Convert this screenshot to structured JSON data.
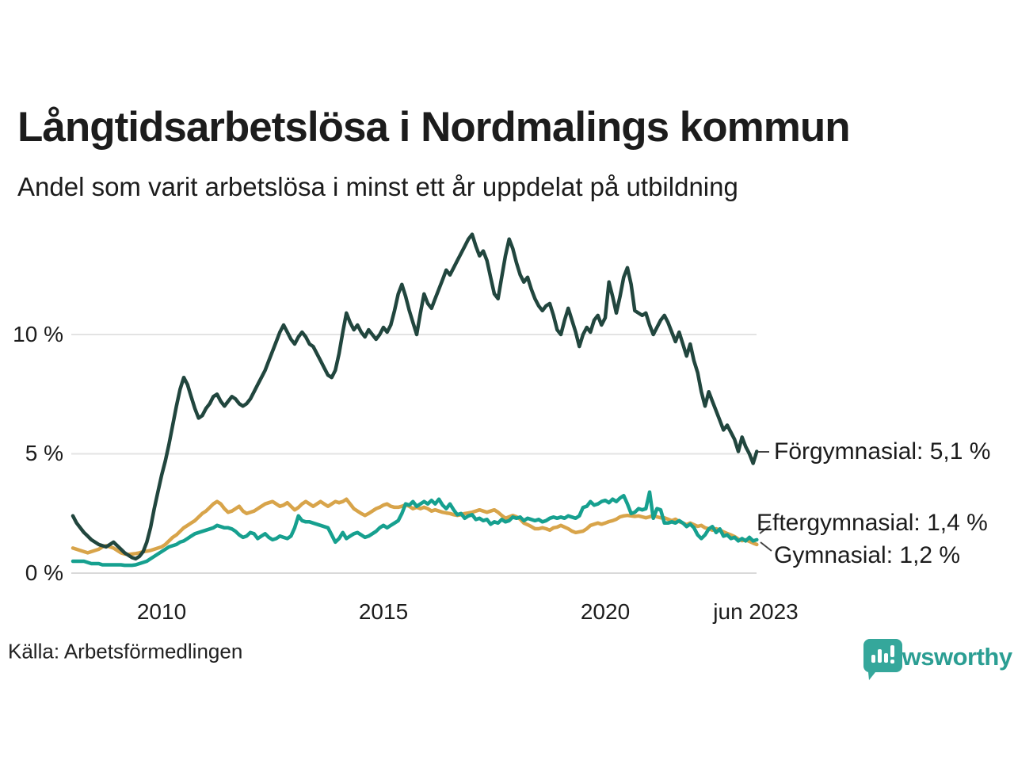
{
  "title": "Långtidsarbetslösa i Nordmalings kommun",
  "subtitle": "Andel som varit arbetslösa i minst ett år uppdelat på utbildning",
  "source": "Källa: Arbetsförmedlingen",
  "brand": {
    "name": "Newsworthy",
    "color": "#2b9e93",
    "logo_color": "#35a79b",
    "icon": "bar-chart-speech-bubble-icon"
  },
  "colors": {
    "background": "#ffffff",
    "text": "#1c1c1c",
    "grid": "#e3e3e3",
    "grid_zero": "#d9d9d9",
    "connector": "#444444"
  },
  "chart_data": {
    "type": "line",
    "x_start": "2008-01",
    "x_end": "2023-06",
    "x_interval": "monthly",
    "x_tick_labels": [
      "2010",
      "2015",
      "2020",
      "jun 2023"
    ],
    "y_tick_labels": [
      "0 %",
      "5 %",
      "10 %"
    ],
    "y_tick_values": [
      0,
      5,
      10
    ],
    "ylim": [
      0,
      14.6
    ],
    "grid": "horizontal",
    "legend_position": "end-of-line-labels",
    "series": [
      {
        "name": "Förgymnasial",
        "color": "#21463e",
        "end_value": "5,1 %",
        "end_label": "Förgymnasial: 5,1 %",
        "values": [
          2.4,
          2.1,
          1.9,
          1.7,
          1.55,
          1.4,
          1.3,
          1.2,
          1.15,
          1.1,
          1.2,
          1.3,
          1.15,
          1.0,
          0.85,
          0.75,
          0.65,
          0.6,
          0.7,
          0.9,
          1.3,
          1.9,
          2.7,
          3.4,
          4.1,
          4.7,
          5.4,
          6.2,
          7.0,
          7.7,
          8.2,
          7.9,
          7.4,
          6.9,
          6.5,
          6.6,
          6.9,
          7.1,
          7.4,
          7.5,
          7.2,
          7.0,
          7.2,
          7.4,
          7.3,
          7.1,
          7.0,
          7.1,
          7.3,
          7.6,
          7.9,
          8.2,
          8.5,
          8.9,
          9.3,
          9.7,
          10.1,
          10.4,
          10.1,
          9.8,
          9.6,
          9.9,
          10.1,
          9.9,
          9.6,
          9.5,
          9.2,
          8.9,
          8.6,
          8.3,
          8.2,
          8.5,
          9.2,
          10.1,
          10.9,
          10.5,
          10.2,
          10.4,
          10.1,
          9.9,
          10.2,
          10.0,
          9.8,
          10.0,
          10.3,
          10.1,
          10.4,
          11.0,
          11.7,
          12.1,
          11.6,
          11.0,
          10.5,
          10.0,
          10.9,
          11.7,
          11.3,
          11.1,
          11.5,
          11.9,
          12.3,
          12.7,
          12.5,
          12.8,
          13.1,
          13.4,
          13.7,
          14.0,
          14.2,
          13.7,
          13.3,
          13.5,
          13.1,
          12.4,
          11.7,
          11.5,
          12.4,
          13.3,
          14.0,
          13.6,
          13.0,
          12.5,
          12.2,
          12.4,
          11.9,
          11.5,
          11.2,
          11.0,
          11.2,
          11.3,
          10.8,
          10.2,
          10.0,
          10.6,
          11.1,
          10.6,
          10.1,
          9.5,
          10.0,
          10.3,
          10.1,
          10.6,
          10.8,
          10.4,
          10.7,
          12.2,
          11.6,
          10.9,
          11.6,
          12.4,
          12.8,
          12.1,
          11.0,
          10.9,
          10.8,
          10.9,
          10.4,
          10.0,
          10.3,
          10.6,
          10.8,
          10.5,
          10.1,
          9.7,
          10.1,
          9.6,
          9.1,
          9.6,
          8.9,
          8.4,
          7.6,
          7.0,
          7.6,
          7.2,
          6.8,
          6.4,
          6.0,
          6.2,
          5.9,
          5.6,
          5.1,
          5.7,
          5.3,
          5.0,
          4.6,
          5.1
        ]
      },
      {
        "name": "Eftergymnasial",
        "color": "#16a08f",
        "end_value": "1,4 %",
        "end_label": "Eftergymnasial: 1,4 %",
        "values": [
          0.5,
          0.5,
          0.5,
          0.5,
          0.45,
          0.4,
          0.4,
          0.4,
          0.35,
          0.35,
          0.35,
          0.35,
          0.35,
          0.35,
          0.33,
          0.33,
          0.33,
          0.35,
          0.4,
          0.45,
          0.5,
          0.6,
          0.7,
          0.8,
          0.9,
          1.0,
          1.1,
          1.15,
          1.2,
          1.3,
          1.35,
          1.45,
          1.55,
          1.65,
          1.7,
          1.75,
          1.8,
          1.85,
          1.9,
          2.0,
          1.95,
          1.9,
          1.9,
          1.85,
          1.75,
          1.6,
          1.5,
          1.55,
          1.7,
          1.65,
          1.45,
          1.55,
          1.65,
          1.5,
          1.4,
          1.45,
          1.55,
          1.5,
          1.45,
          1.55,
          1.9,
          2.4,
          2.2,
          2.15,
          2.15,
          2.1,
          2.05,
          2.0,
          1.95,
          1.9,
          1.6,
          1.3,
          1.45,
          1.7,
          1.45,
          1.55,
          1.65,
          1.7,
          1.6,
          1.5,
          1.55,
          1.65,
          1.75,
          1.9,
          2.0,
          1.9,
          2.0,
          2.1,
          2.2,
          2.5,
          2.9,
          2.85,
          3.0,
          2.8,
          2.9,
          3.0,
          2.9,
          3.05,
          2.9,
          3.1,
          2.85,
          2.7,
          2.9,
          2.65,
          2.45,
          2.5,
          2.3,
          2.4,
          2.45,
          2.25,
          2.3,
          2.2,
          2.25,
          2.05,
          2.15,
          2.1,
          2.25,
          2.15,
          2.2,
          2.35,
          2.3,
          2.35,
          2.2,
          2.3,
          2.25,
          2.2,
          2.25,
          2.15,
          2.2,
          2.3,
          2.35,
          2.3,
          2.35,
          2.3,
          2.4,
          2.35,
          2.3,
          2.4,
          2.75,
          2.8,
          3.0,
          2.85,
          2.9,
          3.0,
          3.05,
          2.95,
          3.1,
          3.0,
          3.15,
          3.25,
          2.9,
          2.5,
          2.55,
          2.7,
          2.65,
          2.7,
          3.4,
          2.3,
          2.7,
          2.65,
          2.1,
          2.1,
          2.15,
          2.1,
          2.2,
          2.1,
          1.95,
          2.05,
          1.9,
          1.6,
          1.45,
          1.6,
          1.85,
          1.95,
          1.7,
          1.85,
          1.55,
          1.6,
          1.45,
          1.5,
          1.35,
          1.45,
          1.35,
          1.5,
          1.35,
          1.4
        ]
      },
      {
        "name": "Gymnasial",
        "color": "#d8a44a",
        "end_value": "1,2 %",
        "end_label": "Gymnasial: 1,2 %",
        "values": [
          1.05,
          1.0,
          0.95,
          0.9,
          0.85,
          0.9,
          0.95,
          1.0,
          1.1,
          1.15,
          1.1,
          1.05,
          0.95,
          0.85,
          0.8,
          0.78,
          0.8,
          0.82,
          0.85,
          0.9,
          0.92,
          0.95,
          1.0,
          1.05,
          1.1,
          1.2,
          1.35,
          1.5,
          1.6,
          1.75,
          1.9,
          2.0,
          2.1,
          2.2,
          2.35,
          2.5,
          2.6,
          2.75,
          2.9,
          3.0,
          2.9,
          2.7,
          2.55,
          2.6,
          2.7,
          2.8,
          2.6,
          2.5,
          2.55,
          2.6,
          2.7,
          2.8,
          2.9,
          2.95,
          3.0,
          2.9,
          2.8,
          2.85,
          2.95,
          2.8,
          2.65,
          2.75,
          2.9,
          3.0,
          2.9,
          2.8,
          2.9,
          3.0,
          2.9,
          2.8,
          2.9,
          3.0,
          2.95,
          3.0,
          3.1,
          2.9,
          2.7,
          2.6,
          2.5,
          2.42,
          2.5,
          2.6,
          2.7,
          2.76,
          2.85,
          2.9,
          2.8,
          2.76,
          2.76,
          2.8,
          2.86,
          2.8,
          2.7,
          2.76,
          2.7,
          2.76,
          2.7,
          2.6,
          2.65,
          2.6,
          2.55,
          2.52,
          2.5,
          2.45,
          2.42,
          2.45,
          2.5,
          2.52,
          2.55,
          2.6,
          2.65,
          2.6,
          2.55,
          2.6,
          2.65,
          2.55,
          2.42,
          2.3,
          2.36,
          2.42,
          2.36,
          2.26,
          2.1,
          2.03,
          1.95,
          1.86,
          1.86,
          1.9,
          1.86,
          1.8,
          1.9,
          1.93,
          2.0,
          1.93,
          1.86,
          1.76,
          1.7,
          1.73,
          1.76,
          1.86,
          2.0,
          2.05,
          2.1,
          2.05,
          2.1,
          2.16,
          2.2,
          2.26,
          2.36,
          2.4,
          2.42,
          2.4,
          2.38,
          2.4,
          2.36,
          2.32,
          2.36,
          2.42,
          2.36,
          2.32,
          2.32,
          2.26,
          2.2,
          2.26,
          2.16,
          2.1,
          2.03,
          2.1,
          2.03,
          1.96,
          2.0,
          1.9,
          1.86,
          1.8,
          1.86,
          1.8,
          1.73,
          1.66,
          1.6,
          1.53,
          1.43,
          1.36,
          1.4,
          1.33,
          1.26,
          1.2
        ]
      }
    ]
  }
}
